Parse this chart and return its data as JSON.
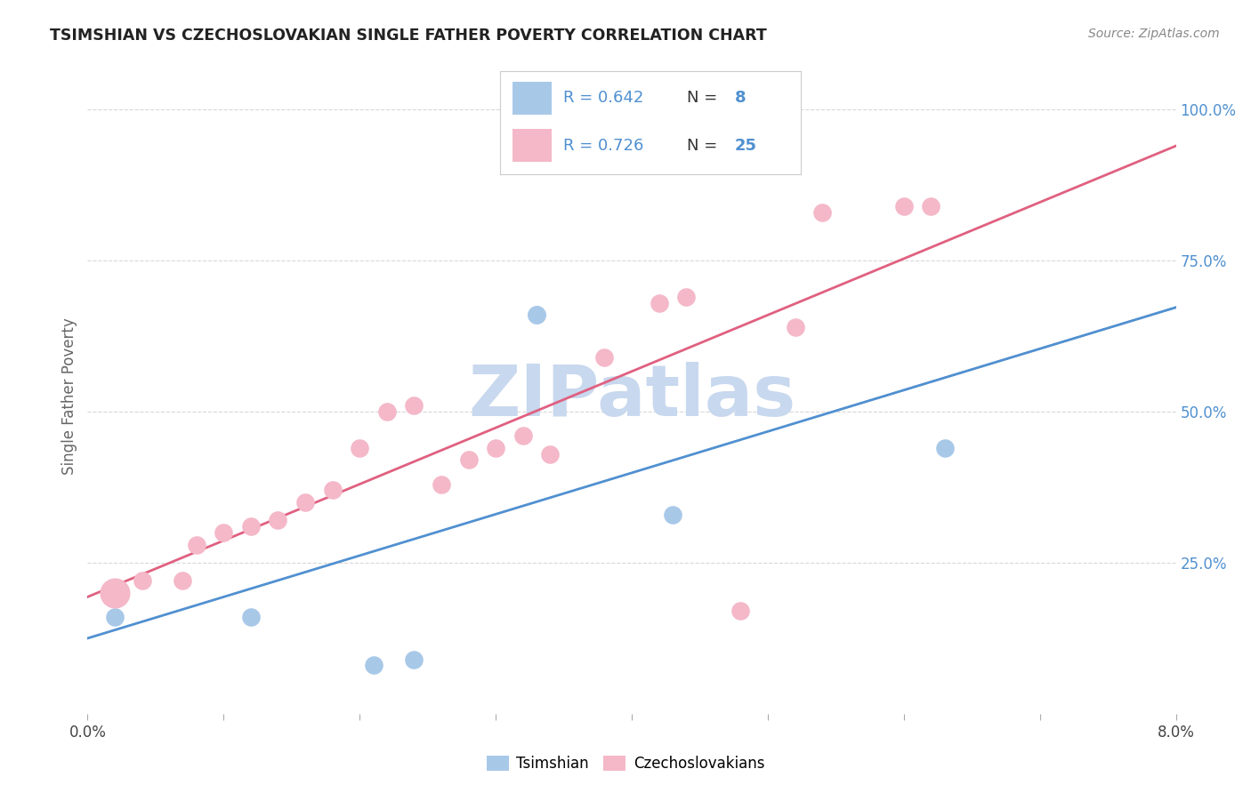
{
  "title": "TSIMSHIAN VS CZECHOSLOVAKIAN SINGLE FATHER POVERTY CORRELATION CHART",
  "source": "Source: ZipAtlas.com",
  "ylabel": "Single Father Poverty",
  "legend_r1": "R = 0.642",
  "legend_n1": "N =  8",
  "legend_r2": "R = 0.726",
  "legend_n2": "N = 25",
  "tsimshian_color": "#a8c8e8",
  "czechoslovakian_color": "#f4b8c8",
  "tsimshian_line_color": "#5090d0",
  "czechoslovakian_line_color": "#e06080",
  "dashed_line_color": "#b0b8c8",
  "right_axis_color": "#5090d0",
  "tsimshian_x": [
    0.002,
    0.012,
    0.021,
    0.024,
    0.033,
    0.033,
    0.043,
    0.063
  ],
  "tsimshian_y": [
    0.16,
    0.16,
    0.08,
    0.09,
    0.66,
    0.66,
    0.33,
    0.44
  ],
  "czechoslovakian_x": [
    0.002,
    0.004,
    0.007,
    0.008,
    0.01,
    0.012,
    0.014,
    0.016,
    0.018,
    0.02,
    0.022,
    0.024,
    0.026,
    0.028,
    0.03,
    0.032,
    0.034,
    0.038,
    0.042,
    0.044,
    0.048,
    0.052,
    0.054,
    0.06,
    0.062
  ],
  "czechoslovakian_y": [
    0.2,
    0.22,
    0.22,
    0.28,
    0.3,
    0.31,
    0.32,
    0.35,
    0.37,
    0.44,
    0.5,
    0.51,
    0.38,
    0.42,
    0.44,
    0.46,
    0.43,
    0.59,
    0.68,
    0.69,
    0.17,
    0.64,
    0.83,
    0.84,
    0.84
  ],
  "background_color": "#ffffff",
  "grid_color": "#d8d8d8",
  "watermark_text": "ZIPatlas",
  "watermark_color": "#c8d8ee",
  "xlim": [
    0.0,
    0.08
  ],
  "ylim": [
    0.0,
    1.05
  ],
  "yticks": [
    0.25,
    0.5,
    0.75,
    1.0
  ],
  "ytick_labels": [
    "25.0%",
    "50.0%",
    "75.0%",
    "100.0%"
  ]
}
